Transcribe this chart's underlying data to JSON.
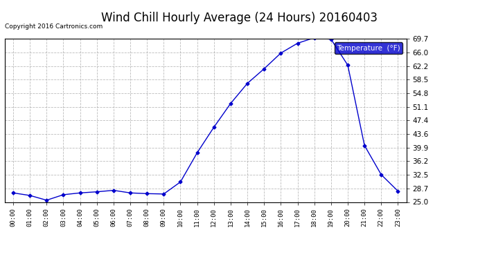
{
  "title": "Wind Chill Hourly Average (24 Hours) 20160403",
  "copyright_text": "Copyright 2016 Cartronics.com",
  "legend_label": "Temperature  (°F)",
  "hours": [
    "00:00",
    "01:00",
    "02:00",
    "03:00",
    "04:00",
    "05:00",
    "06:00",
    "07:00",
    "08:00",
    "09:00",
    "10:00",
    "11:00",
    "12:00",
    "13:00",
    "14:00",
    "15:00",
    "16:00",
    "17:00",
    "18:00",
    "19:00",
    "20:00",
    "21:00",
    "22:00",
    "23:00"
  ],
  "values": [
    27.5,
    26.8,
    25.5,
    27.0,
    27.5,
    27.8,
    28.2,
    27.5,
    27.3,
    27.2,
    30.5,
    38.5,
    45.5,
    52.0,
    57.5,
    61.5,
    65.8,
    68.5,
    70.0,
    69.6,
    62.5,
    40.5,
    32.5,
    28.0
  ],
  "line_color": "#0000cc",
  "marker": "D",
  "marker_size": 2.5,
  "bg_color": "#ffffff",
  "plot_bg_color": "#ffffff",
  "grid_color": "#aaaaaa",
  "ylim": [
    25.0,
    69.7
  ],
  "yticks": [
    25.0,
    28.7,
    32.5,
    36.2,
    39.9,
    43.6,
    47.4,
    51.1,
    54.8,
    58.5,
    62.2,
    66.0,
    69.7
  ],
  "title_fontsize": 12,
  "legend_bg": "#0000cc",
  "legend_fg": "#ffffff"
}
